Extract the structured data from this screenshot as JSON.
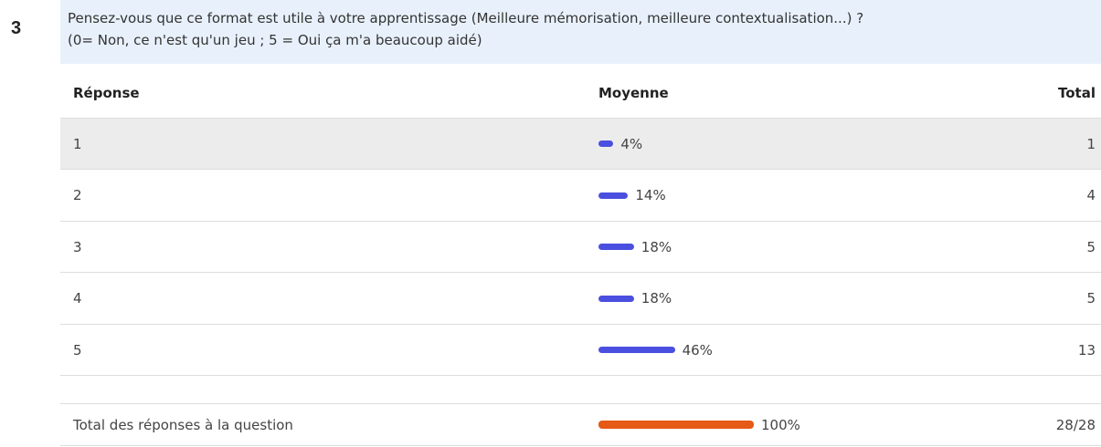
{
  "question": {
    "number": "3",
    "lines": [
      "Pensez-vous que ce format est utile à votre apprentissage (Meilleure mémorisation, meilleure contextualisation...) ?",
      "(0= Non, ce n'est qu'un jeu ; 5 = Oui ça m'a beaucoup aidé)"
    ]
  },
  "table": {
    "headers": [
      "Réponse",
      "Moyenne",
      "Total"
    ],
    "rows": [
      {
        "response": "1",
        "percent": 4,
        "percent_label": "4%",
        "total": "1"
      },
      {
        "response": "2",
        "percent": 14,
        "percent_label": "14%",
        "total": "4"
      },
      {
        "response": "3",
        "percent": 18,
        "percent_label": "18%",
        "total": "5"
      },
      {
        "response": "4",
        "percent": 18,
        "percent_label": "18%",
        "total": "5"
      },
      {
        "response": "5",
        "percent": 46,
        "percent_label": "46%",
        "total": "13"
      }
    ],
    "total_row": {
      "label": "Total des réponses à la question",
      "percent": 100,
      "percent_label": "100%",
      "total": "28/28"
    }
  }
}
